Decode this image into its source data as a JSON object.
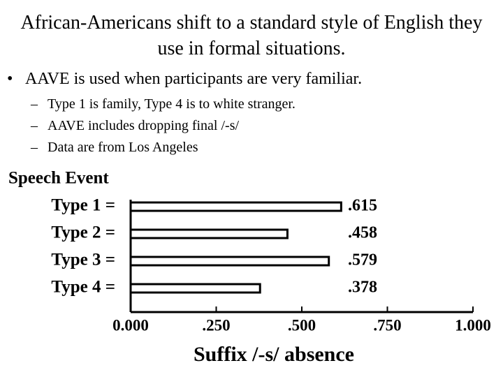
{
  "slide": {
    "title": "African-Americans shift to a standard style of English they use in formal situations.",
    "bullet": "AAVE is used when participants are very familiar.",
    "sub_bullets": [
      "Type 1 is family, Type 4 is to white stranger.",
      "AAVE includes dropping final /-s/",
      "Data are from Los Angeles"
    ]
  },
  "chart_data": {
    "type": "bar",
    "orientation": "horizontal",
    "y_label": "Speech Event",
    "x_label": "Suffix /-s/ absence",
    "categories": [
      "Type 1 =",
      "Type 2 =",
      "Type 3 =",
      "Type 4 ="
    ],
    "values": [
      0.615,
      0.458,
      0.579,
      0.378
    ],
    "value_labels": [
      ".615",
      ".458",
      ".579",
      ".378"
    ],
    "color": "#ffffff",
    "xlim": [
      0,
      1
    ],
    "xticks": [
      {
        "value": 0,
        "label": "0.000"
      },
      {
        "value": 0.25,
        "label": ".250"
      },
      {
        "value": 0.5,
        "label": ".500"
      },
      {
        "value": 0.75,
        "label": ".750"
      },
      {
        "value": 1,
        "label": "1.000"
      }
    ]
  }
}
